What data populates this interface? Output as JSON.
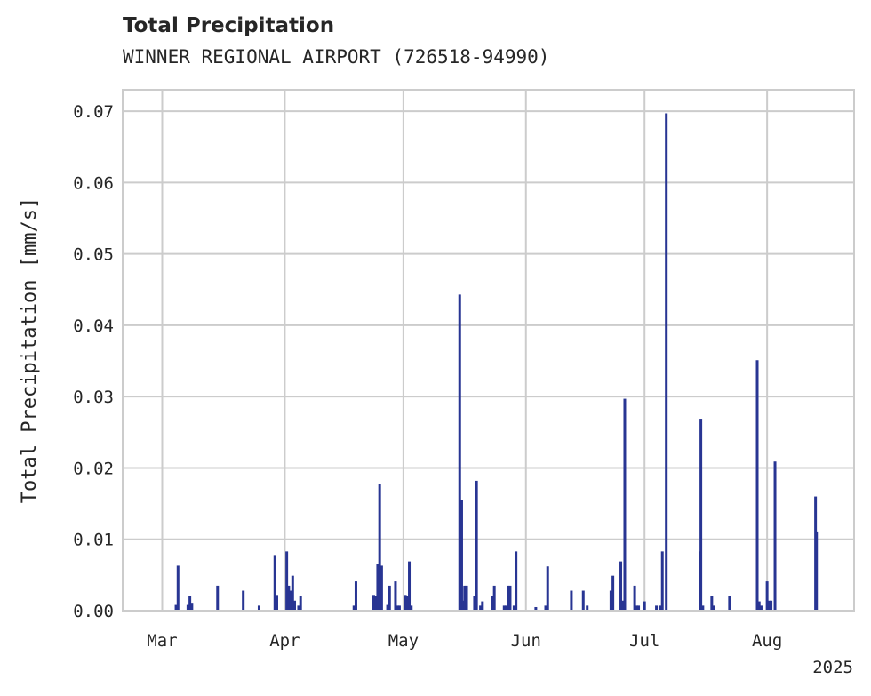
{
  "chart_data": {
    "type": "bar",
    "title": "Total Precipitation",
    "subtitle": "WINNER REGIONAL AIRPORT (726518-94990)",
    "xlabel": "",
    "ylabel": "Total Precipitation [mm/s]",
    "xlim": [
      "2025-02-19",
      "2025-08-23"
    ],
    "ylim": [
      0,
      0.073
    ],
    "grid": true,
    "legend": "none",
    "color": "#283593",
    "x_ticks": [
      {
        "date": "2025-03-01",
        "label": "Mar"
      },
      {
        "date": "2025-04-01",
        "label": "Apr"
      },
      {
        "date": "2025-05-01",
        "label": "May"
      },
      {
        "date": "2025-06-01",
        "label": "Jun"
      },
      {
        "date": "2025-07-01",
        "label": "Jul"
      },
      {
        "date": "2025-08-01",
        "label": "Aug"
      }
    ],
    "x_offset_label": "2025",
    "y_ticks": [
      {
        "value": 0.0,
        "label": "0.00"
      },
      {
        "value": 0.01,
        "label": "0.01"
      },
      {
        "value": 0.02,
        "label": "0.02"
      },
      {
        "value": 0.03,
        "label": "0.03"
      },
      {
        "value": 0.04,
        "label": "0.04"
      },
      {
        "value": 0.05,
        "label": "0.05"
      },
      {
        "value": 0.06,
        "label": "0.06"
      },
      {
        "value": 0.07,
        "label": "0.07"
      }
    ],
    "points": [
      {
        "x": "2025-03-04T12:00",
        "y": 0.0008
      },
      {
        "x": "2025-03-05",
        "y": 0.0063
      },
      {
        "x": "2025-03-07T12:00",
        "y": 0.0008
      },
      {
        "x": "2025-03-08",
        "y": 0.0021
      },
      {
        "x": "2025-03-08T12:00",
        "y": 0.0011
      },
      {
        "x": "2025-03-15",
        "y": 0.0035
      },
      {
        "x": "2025-03-21T12:00",
        "y": 0.0028
      },
      {
        "x": "2025-03-25T12:00",
        "y": 0.0007
      },
      {
        "x": "2025-03-29T12:00",
        "y": 0.0078
      },
      {
        "x": "2025-03-30",
        "y": 0.0022
      },
      {
        "x": "2025-04-01T12:00",
        "y": 0.0083
      },
      {
        "x": "2025-04-02",
        "y": 0.0035
      },
      {
        "x": "2025-04-02T12:00",
        "y": 0.0028
      },
      {
        "x": "2025-04-03",
        "y": 0.0049
      },
      {
        "x": "2025-04-03T12:00",
        "y": 0.0014
      },
      {
        "x": "2025-04-04T12:00",
        "y": 0.0007
      },
      {
        "x": "2025-04-05",
        "y": 0.0021
      },
      {
        "x": "2025-04-18T12:00",
        "y": 0.0007
      },
      {
        "x": "2025-04-19",
        "y": 0.0041
      },
      {
        "x": "2025-04-23T12:00",
        "y": 0.0022
      },
      {
        "x": "2025-04-24",
        "y": 0.0021
      },
      {
        "x": "2025-04-24T12:00",
        "y": 0.0066
      },
      {
        "x": "2025-04-25",
        "y": 0.0178
      },
      {
        "x": "2025-04-25T12:00",
        "y": 0.0063
      },
      {
        "x": "2025-04-27",
        "y": 0.0008
      },
      {
        "x": "2025-04-27T12:00",
        "y": 0.0035
      },
      {
        "x": "2025-04-29",
        "y": 0.0041
      },
      {
        "x": "2025-04-29T12:00",
        "y": 0.0007
      },
      {
        "x": "2025-04-30",
        "y": 0.0007
      },
      {
        "x": "2025-05-01T12:00",
        "y": 0.0022
      },
      {
        "x": "2025-05-02",
        "y": 0.0021
      },
      {
        "x": "2025-05-02T12:00",
        "y": 0.0069
      },
      {
        "x": "2025-05-03",
        "y": 0.0007
      },
      {
        "x": "2025-05-15T06:00",
        "y": 0.0443
      },
      {
        "x": "2025-05-15T18:00",
        "y": 0.0155
      },
      {
        "x": "2025-05-16",
        "y": 0.0014
      },
      {
        "x": "2025-05-16T12:00",
        "y": 0.0035
      },
      {
        "x": "2025-05-17",
        "y": 0.0035
      },
      {
        "x": "2025-05-19",
        "y": 0.0021
      },
      {
        "x": "2025-05-19T12:00",
        "y": 0.0182
      },
      {
        "x": "2025-05-20T12:00",
        "y": 0.0007
      },
      {
        "x": "2025-05-21",
        "y": 0.0013
      },
      {
        "x": "2025-05-23T12:00",
        "y": 0.0021
      },
      {
        "x": "2025-05-24",
        "y": 0.0035
      },
      {
        "x": "2025-05-26T12:00",
        "y": 0.0007
      },
      {
        "x": "2025-05-27",
        "y": 0.0007
      },
      {
        "x": "2025-05-27T12:00",
        "y": 0.0035
      },
      {
        "x": "2025-05-28",
        "y": 0.0035
      },
      {
        "x": "2025-05-29",
        "y": 0.0007
      },
      {
        "x": "2025-05-29T12:00",
        "y": 0.0083
      },
      {
        "x": "2025-06-03T12:00",
        "y": 0.0005
      },
      {
        "x": "2025-06-06",
        "y": 0.0007
      },
      {
        "x": "2025-06-06T12:00",
        "y": 0.0062
      },
      {
        "x": "2025-06-12T12:00",
        "y": 0.0028
      },
      {
        "x": "2025-06-15T12:00",
        "y": 0.0028
      },
      {
        "x": "2025-06-16T12:00",
        "y": 0.0007
      },
      {
        "x": "2025-06-22T12:00",
        "y": 0.0028
      },
      {
        "x": "2025-06-23",
        "y": 0.0049
      },
      {
        "x": "2025-06-25",
        "y": 0.0069
      },
      {
        "x": "2025-06-25T12:00",
        "y": 0.0014
      },
      {
        "x": "2025-06-26",
        "y": 0.0297
      },
      {
        "x": "2025-06-28T12:00",
        "y": 0.0035
      },
      {
        "x": "2025-06-29",
        "y": 0.0007
      },
      {
        "x": "2025-06-29T12:00",
        "y": 0.0007
      },
      {
        "x": "2025-07-01",
        "y": 0.0013
      },
      {
        "x": "2025-07-04",
        "y": 0.0007
      },
      {
        "x": "2025-07-05",
        "y": 0.0007
      },
      {
        "x": "2025-07-05T12:00",
        "y": 0.0083
      },
      {
        "x": "2025-07-06T12:00",
        "y": 0.0697
      },
      {
        "x": "2025-07-15",
        "y": 0.0083
      },
      {
        "x": "2025-07-15T06:00",
        "y": 0.0269
      },
      {
        "x": "2025-07-15T18:00",
        "y": 0.0007
      },
      {
        "x": "2025-07-18",
        "y": 0.0021
      },
      {
        "x": "2025-07-18T12:00",
        "y": 0.0007
      },
      {
        "x": "2025-07-22T12:00",
        "y": 0.0021
      },
      {
        "x": "2025-07-29T12:00",
        "y": 0.0351
      },
      {
        "x": "2025-07-30",
        "y": 0.0013
      },
      {
        "x": "2025-07-30T12:00",
        "y": 0.0007
      },
      {
        "x": "2025-08-01",
        "y": 0.0041
      },
      {
        "x": "2025-08-01T12:00",
        "y": 0.0014
      },
      {
        "x": "2025-08-02",
        "y": 0.0014
      },
      {
        "x": "2025-08-03",
        "y": 0.0209
      },
      {
        "x": "2025-08-13T06:00",
        "y": 0.016
      },
      {
        "x": "2025-08-13T12:00",
        "y": 0.0111
      }
    ]
  }
}
